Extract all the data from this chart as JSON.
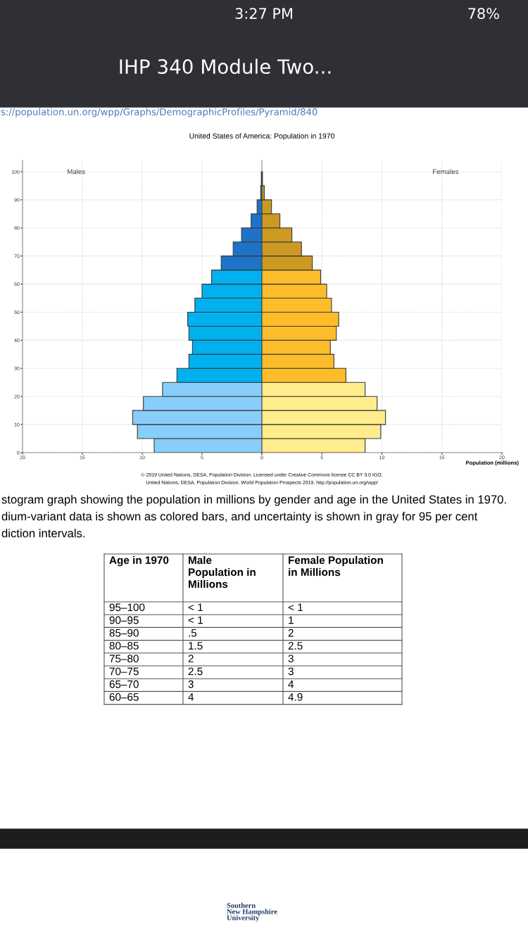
{
  "chart_data": [
    {
      "type": "other",
      "annotations": [
        "3:27 PM",
        "78%",
        "IHP 340 Module Two...",
        "s://population.un.org/wpp/Graphs/DemographicProfiles/Pyramid/840"
      ]
    },
    {
      "type": "bar",
      "orientation": "horizontal",
      "title": "United States of America: Population in 1970",
      "x": [
        2.5,
        7.5,
        12.5,
        17.5,
        22.5,
        27.5,
        32.5,
        37.5,
        42.5,
        47.5,
        52.5,
        57.5,
        62.5,
        67.5,
        72.5,
        77.5,
        82.5,
        87.5,
        92.5,
        97.5
      ],
      "series": [
        {
          "name": "Males",
          "values": [
            9.0,
            10.4,
            10.8,
            9.9,
            8.3,
            7.1,
            6.1,
            5.8,
            6.1,
            6.2,
            5.6,
            5.0,
            4.2,
            3.4,
            2.4,
            1.7,
            0.9,
            0.4,
            0.1,
            0.05
          ],
          "colors": [
            "#87cefa",
            "#87cefa",
            "#87cefa",
            "#87cefa",
            "#87cefa",
            "#00b0ef",
            "#00b0ef",
            "#00b0ef",
            "#00b0ef",
            "#00b0ef",
            "#00b0ef",
            "#00b0ef",
            "#00b0ef",
            "#1e73c9",
            "#1e73c9",
            "#1e73c9",
            "#1e73c9",
            "#1e73c9",
            "#1e73c9",
            "#1e73c9"
          ]
        }
      ],
      "xlim": [
        20,
        0
      ],
      "xticks": [
        20,
        15,
        10,
        5,
        0
      ],
      "ylim": [
        0,
        104
      ],
      "yticks": [
        0,
        10,
        20,
        30,
        40,
        50,
        60,
        70,
        80,
        90,
        100
      ],
      "grid": true,
      "annotations": [
        "© 2019 United Nations, DESA, Population Division. Licensed under Creative Commons license CC BY 3.0 IGO.",
        "United Nations, DESA, Population Division. World Population Prospects 2019. http://population.un.org/wpp/"
      ]
    },
    {
      "type": "bar",
      "orientation": "horizontal",
      "xlabel": "Population (millions)",
      "x": [
        2.5,
        7.5,
        12.5,
        17.5,
        22.5,
        27.5,
        32.5,
        37.5,
        42.5,
        47.5,
        52.5,
        57.5,
        62.5,
        67.5,
        72.5,
        77.5,
        82.5,
        87.5,
        92.5,
        97.5
      ],
      "series": [
        {
          "name": "Females",
          "values": [
            8.6,
            9.9,
            10.3,
            9.6,
            8.6,
            7.0,
            6.0,
            5.7,
            6.2,
            6.4,
            5.8,
            5.4,
            4.9,
            4.2,
            3.3,
            2.5,
            1.5,
            0.8,
            0.2,
            0.05
          ],
          "colors": [
            "#ffec8c",
            "#ffec8c",
            "#ffec8c",
            "#ffec8c",
            "#ffec8c",
            "#fdbd2a",
            "#fdbd2a",
            "#fdbd2a",
            "#fdbd2a",
            "#fdbd2a",
            "#fdbd2a",
            "#fdbd2a",
            "#fdbd2a",
            "#cc9a22",
            "#cc9a22",
            "#cc9a22",
            "#cc9a22",
            "#cc9a22",
            "#cc9a22",
            "#cc9a22"
          ]
        }
      ],
      "xlim": [
        0,
        20
      ],
      "xticks": [
        {
          "value": 0,
          "label": null
        },
        5,
        10,
        15,
        20
      ],
      "ylim": [
        0,
        104
      ],
      "yticks": [
        0,
        10,
        20,
        30,
        40,
        50,
        60,
        70,
        80,
        90,
        100
      ],
      "grid": true,
      "tick_labels": "x"
    },
    {
      "type": "other",
      "annotations": [
        "stogram graph showing the population in millions by gender and age in the United States in 1970.",
        "dium-variant data is shown as colored bars, and uncertainty is shown in gray for 95 per cent",
        "diction intervals.",
        "Southern\nNew Hampshire\nUniversity"
      ],
      "categories": [
        "Age in 1970",
        "Male\nPopulation in\nMillions",
        "Female Population\nin Millions"
      ],
      "y_categories": [
        "95–100",
        "90–95",
        "85–90",
        "80–85",
        "75–80",
        "70–75",
        "65–70",
        "60–65"
      ],
      "cell_labels": [
        [
          "< 1",
          "< 1"
        ],
        [
          "< 1",
          "1"
        ],
        [
          ".5",
          "2"
        ],
        [
          "1.5",
          "2.5"
        ],
        [
          "2",
          "3"
        ],
        [
          "2.5",
          "3"
        ],
        [
          "3",
          "4"
        ],
        [
          "4",
          "4.9"
        ]
      ]
    }
  ]
}
